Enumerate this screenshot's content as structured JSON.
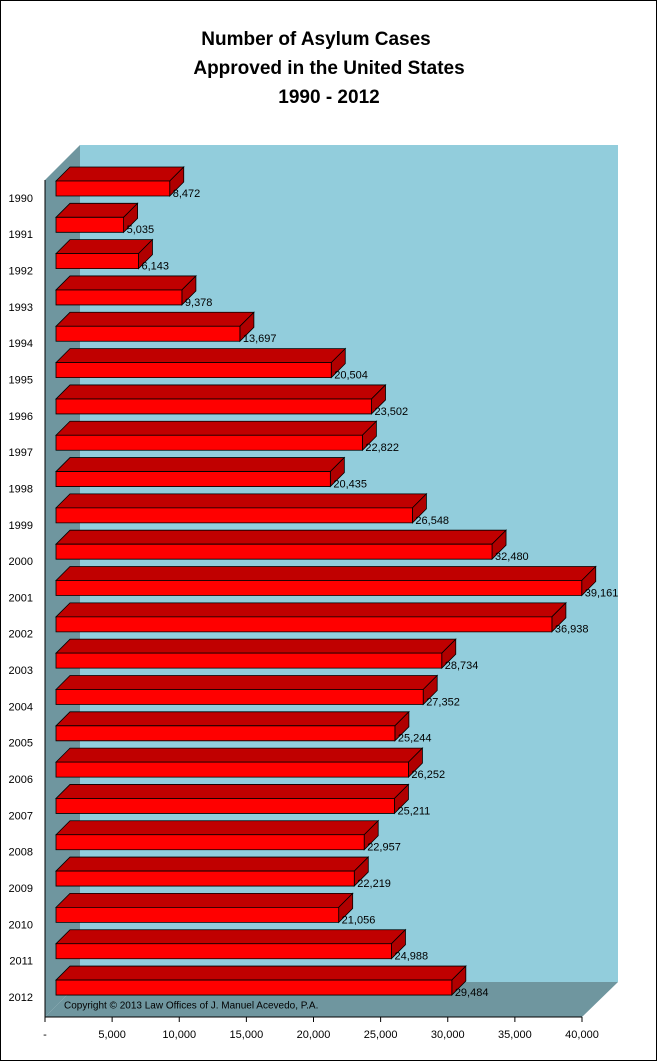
{
  "chart_data": {
    "type": "bar3d-horizontal",
    "title": [
      "Number of Asylum Cases",
      "Approved in the United States",
      "1990 - 2012"
    ],
    "categories": [
      "1990",
      "1991",
      "1992",
      "1993",
      "1994",
      "1995",
      "1996",
      "1997",
      "1998",
      "1999",
      "2000",
      "2001",
      "2002",
      "2003",
      "2004",
      "2005",
      "2006",
      "2007",
      "2008",
      "2009",
      "2010",
      "2011",
      "2012"
    ],
    "values": [
      8472,
      5035,
      6143,
      9378,
      13697,
      20504,
      23502,
      22822,
      20435,
      26548,
      32480,
      39161,
      36938,
      28734,
      27352,
      25244,
      26252,
      25211,
      22957,
      22219,
      21056,
      24988,
      29484
    ],
    "value_labels": [
      "8,472",
      "5,035",
      "6,143",
      "9,378",
      "13,697",
      "20,504",
      "23,502",
      "22,822",
      "20,435",
      "26,548",
      "32,480",
      "39,161",
      "36,938",
      "28,734",
      "27,352",
      "25,244",
      "26,252",
      "25,211",
      "22,957",
      "22,219",
      "21,056",
      "24,988",
      "29,484"
    ],
    "color": "#ff0000",
    "xlim": [
      0,
      40000
    ],
    "xticks": [
      {
        "value": 0,
        "label": "-"
      },
      {
        "value": 5000,
        "label": "5,000"
      },
      {
        "value": 10000,
        "label": "10,000"
      },
      {
        "value": 15000,
        "label": "15,000"
      },
      {
        "value": 20000,
        "label": "20,000"
      },
      {
        "value": 25000,
        "label": "25,000"
      },
      {
        "value": 30000,
        "label": "30,000"
      },
      {
        "value": 35000,
        "label": "35,000"
      },
      {
        "value": 40000,
        "label": "40,000"
      }
    ],
    "annotation": "Copyright © 2013 Law Offices of J. Manuel Acevedo, P.A."
  }
}
